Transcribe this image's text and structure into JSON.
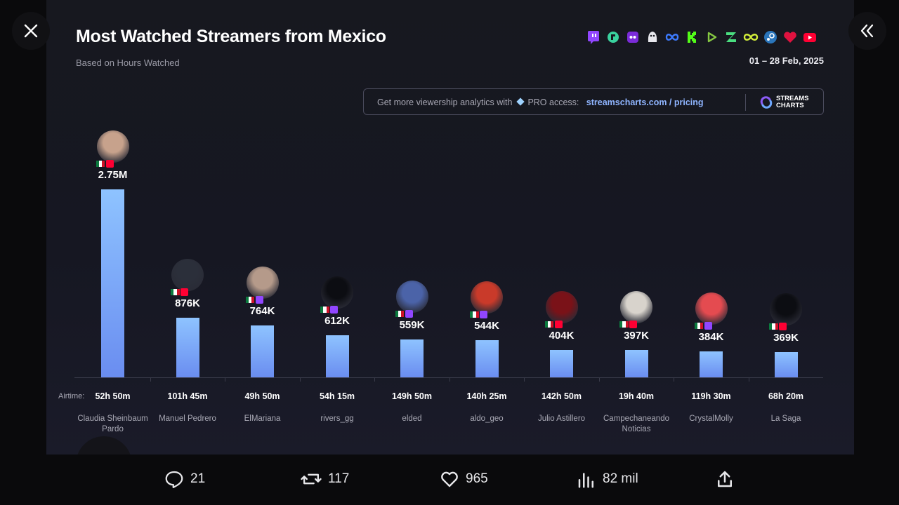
{
  "viewer": {
    "close_icon": "close-icon",
    "collapse_icon": "double-chevron-left-icon"
  },
  "card": {
    "title": "Most Watched Streamers from Mexico",
    "subtitle": "Based on Hours Watched",
    "date": "01 – 28 Feb, 2025",
    "platform_icons": [
      "twitch-icon",
      "kick-like-icon",
      "trovo-icon",
      "nimo-icon",
      "facebook-gaming-icon",
      "kick-icon",
      "rumble-icon",
      "zhanqi-icon",
      "infinity-icon",
      "steam-icon",
      "heart-icon",
      "youtube-icon"
    ],
    "promo": {
      "text_before": "Get more viewership analytics with",
      "pro_text": "PRO access:",
      "link_host": "streamscharts.com",
      "link_sep": " / ",
      "link_path": "pricing",
      "logo_line1": "STREAMS",
      "logo_line2": "CHARTS"
    },
    "airtime_label": "Airtime:"
  },
  "chart_data": {
    "type": "bar",
    "title": "Most Watched Streamers from Mexico",
    "subtitle": "Based on Hours Watched",
    "categories": [
      "Claudia Sheinbaum Pardo",
      "Manuel Pedrero",
      "ElMariana",
      "rivers_gg",
      "elded",
      "aldo_geo",
      "Julio Astillero",
      "Campechaneando Noticias",
      "CrystalMolly",
      "La Saga"
    ],
    "values": [
      2750000,
      876000,
      764000,
      612000,
      559000,
      544000,
      404000,
      397000,
      384000,
      369000
    ],
    "value_labels": [
      "2.75M",
      "876K",
      "764K",
      "612K",
      "559K",
      "544K",
      "404K",
      "397K",
      "384K",
      "369K"
    ],
    "airtime": [
      "52h 50m",
      "101h 45m",
      "49h 50m",
      "54h 15m",
      "149h 50m",
      "140h 25m",
      "142h 50m",
      "19h 40m",
      "119h 30m",
      "68h 20m"
    ],
    "platforms": [
      "youtube",
      "youtube",
      "twitch",
      "twitch",
      "twitch",
      "twitch",
      "youtube",
      "youtube",
      "twitch",
      "youtube"
    ],
    "accent_colors": {
      "twitch": "#9146ff",
      "youtube": "#ff0033",
      "bar_top": "#8ec3ff",
      "bar_bottom": "#6a8df0"
    },
    "ylim": [
      0,
      2750000
    ],
    "grid": false
  },
  "actions": {
    "replies": "21",
    "reposts": "117",
    "likes": "965",
    "views": "82 mil"
  }
}
